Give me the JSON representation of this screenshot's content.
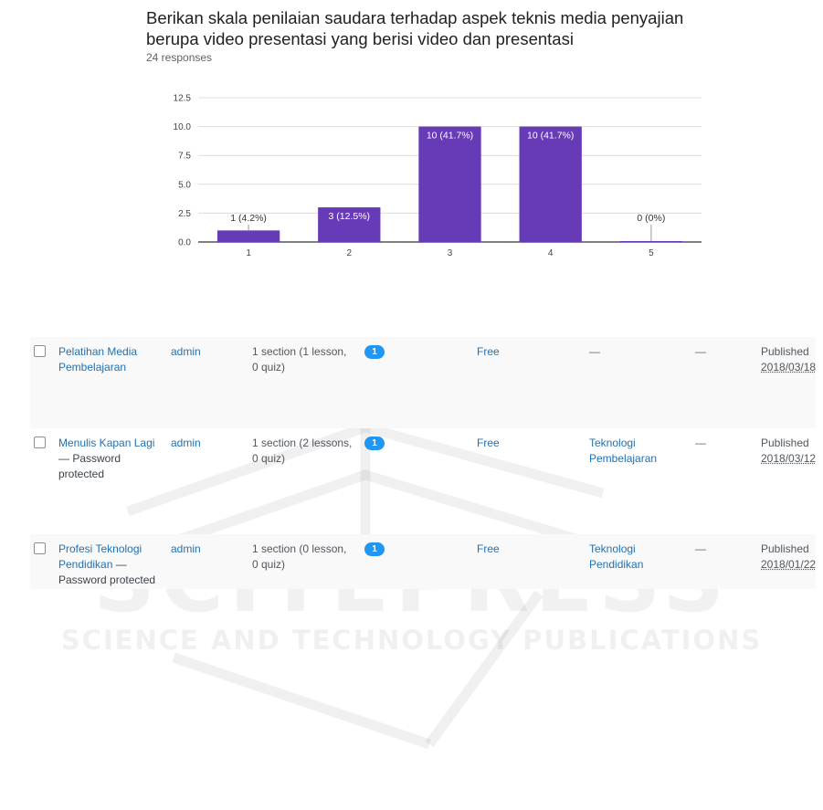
{
  "question": {
    "title": "Berikan skala penilaian saudara terhadap aspek teknis media penyajian berupa video presentasi yang berisi video dan presentasi",
    "responses": "24 responses"
  },
  "chart_data": {
    "type": "bar",
    "categories": [
      "1",
      "2",
      "3",
      "4",
      "5"
    ],
    "values": [
      1,
      3,
      10,
      10,
      0
    ],
    "data_labels": [
      "1 (4.2%)",
      "3 (12.5%)",
      "10 (41.7%)",
      "10 (41.7%)",
      "0 (0%)"
    ],
    "yticks": [
      "0.0",
      "2.5",
      "5.0",
      "7.5",
      "10.0",
      "12.5"
    ],
    "ylim": [
      0,
      12.5
    ],
    "grid": true,
    "bar_color": "#673ab7"
  },
  "courses": [
    {
      "title": "Pelatihan Media Pembelajaran",
      "note": "",
      "author": "admin",
      "content": "1 section (1 lesson, 0 quiz)",
      "count": "1",
      "price": "Free",
      "category": "—",
      "tags": "—",
      "status": "Published",
      "date": "2018/03/18"
    },
    {
      "title": "Menulis Kapan Lagi",
      "note": "— Password protected",
      "author": "admin",
      "content": "1 section (2 lessons, 0 quiz)",
      "count": "1",
      "price": "Free",
      "category": "Teknologi Pembelajaran",
      "tags": "—",
      "status": "Published",
      "date": "2018/03/12"
    },
    {
      "title": "Profesi Teknologi Pendidikan",
      "note": "— Password protected",
      "author": "admin",
      "content": "1 section (0 lesson, 0 quiz)",
      "count": "1",
      "price": "Free",
      "category": "Teknologi Pendidikan",
      "tags": "—",
      "status": "Published",
      "date": "2018/01/22"
    }
  ],
  "watermark": {
    "big": "SCITEPRESS",
    "small": "SCIENCE AND TECHNOLOGY PUBLICATIONS"
  }
}
